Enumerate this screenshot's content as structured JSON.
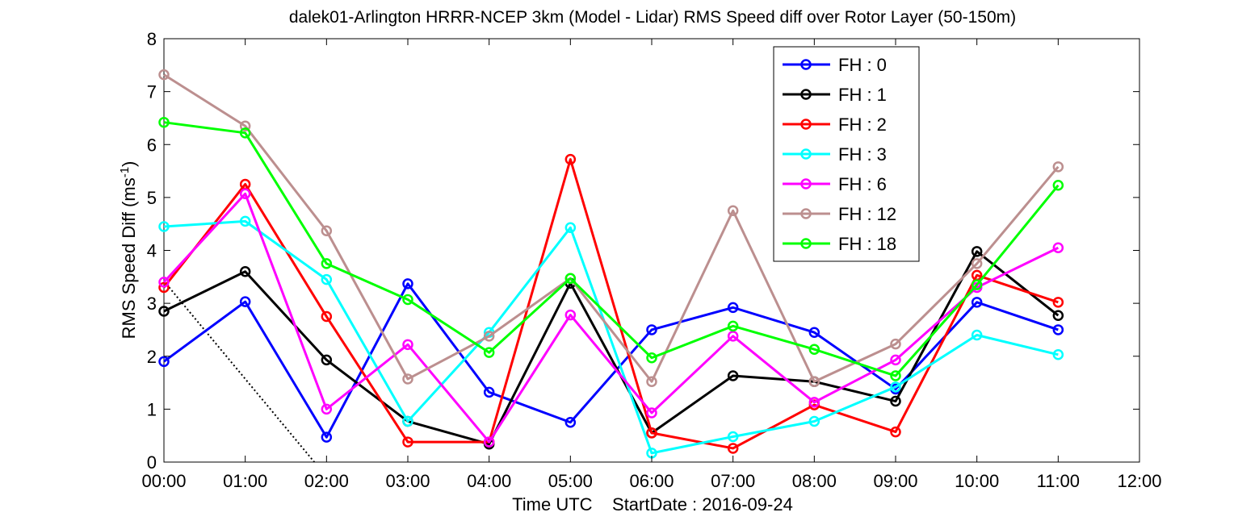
{
  "chart_data": {
    "type": "line",
    "title": "dalek01-Arlington HRRR-NCEP 3km (Model - Lidar) RMS Speed diff over Rotor Layer (50-150m)",
    "xlabel": "Time UTC    StartDate : 2016-09-24",
    "ylabel": "RMS Speed Diff (ms",
    "ylabel_superscript": "-1",
    "ylabel_suffix": ")",
    "x": [
      "00:00",
      "01:00",
      "02:00",
      "03:00",
      "04:00",
      "05:00",
      "06:00",
      "07:00",
      "08:00",
      "09:00",
      "10:00",
      "11:00"
    ],
    "xticks": [
      "00:00",
      "01:00",
      "02:00",
      "03:00",
      "04:00",
      "05:00",
      "06:00",
      "07:00",
      "08:00",
      "09:00",
      "10:00",
      "11:00",
      "12:00"
    ],
    "xlim_hours": [
      0,
      12
    ],
    "ylim": [
      0,
      8
    ],
    "yticks": [
      "0",
      "1",
      "2",
      "3",
      "4",
      "5",
      "6",
      "7",
      "8"
    ],
    "grid": false,
    "legend_position": "top-right",
    "marker": "circle",
    "series": [
      {
        "name": "FH : 0",
        "color": "#0000ff",
        "values": [
          1.9,
          3.03,
          0.47,
          3.37,
          1.32,
          0.75,
          2.5,
          2.92,
          2.45,
          1.38,
          3.02,
          2.5
        ]
      },
      {
        "name": "FH : 1",
        "color": "#000000",
        "values": [
          2.85,
          3.6,
          1.93,
          0.77,
          0.34,
          3.38,
          0.55,
          1.63,
          1.52,
          1.15,
          3.98,
          2.77
        ]
      },
      {
        "name": "FH : 2",
        "color": "#ff0000",
        "values": [
          3.3,
          5.25,
          2.75,
          0.38,
          0.38,
          5.72,
          0.55,
          0.26,
          1.08,
          0.57,
          3.53,
          3.02
        ]
      },
      {
        "name": "FH : 3",
        "color": "#00ffff",
        "values": [
          4.45,
          4.55,
          3.45,
          0.77,
          2.45,
          4.43,
          0.17,
          0.48,
          0.77,
          1.42,
          2.4,
          2.03
        ]
      },
      {
        "name": "FH : 6",
        "color": "#ff00ff",
        "values": [
          3.4,
          5.07,
          1.0,
          2.22,
          0.38,
          2.78,
          0.93,
          2.38,
          1.13,
          1.93,
          3.3,
          4.05
        ]
      },
      {
        "name": "FH : 12",
        "color": "#bc8f8f",
        "values": [
          7.32,
          6.35,
          4.37,
          1.57,
          2.38,
          3.47,
          1.52,
          4.75,
          1.52,
          2.23,
          3.75,
          5.58
        ]
      },
      {
        "name": "FH : 18",
        "color": "#00ff00",
        "values": [
          6.42,
          6.22,
          3.75,
          3.07,
          2.07,
          3.47,
          1.97,
          2.57,
          2.13,
          1.63,
          3.35,
          5.23
        ]
      }
    ],
    "reference_line": {
      "style": "dotted",
      "color": "#000000",
      "x_hours": [
        0,
        1.85
      ],
      "y": [
        3.42,
        0
      ]
    }
  }
}
